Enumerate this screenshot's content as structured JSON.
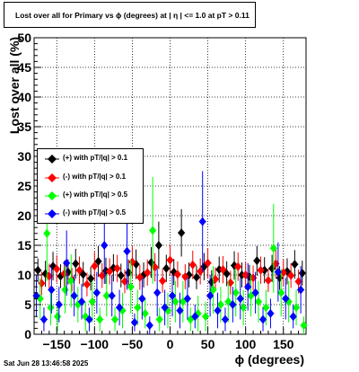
{
  "title": "Lost over all for Primary vs ϕ (degrees) at |  η  | <= 1.0 at pT > 0.11",
  "timestamp": "Sat Jun 28 13:46:58 2025",
  "chart_data": {
    "type": "scatter",
    "xlabel": "ϕ (degrees)",
    "ylabel": "Lost over all (%)",
    "xlim": [
      -180,
      180
    ],
    "ylim": [
      0,
      50
    ],
    "x_ticks": [
      "−150",
      "−100",
      "−50",
      "0",
      "50",
      "100",
      "150"
    ],
    "x_tick_values": [
      -150,
      -100,
      -50,
      0,
      50,
      100,
      150
    ],
    "y_ticks": [
      "0",
      "5",
      "10",
      "15",
      "20",
      "25",
      "30",
      "35",
      "40",
      "45",
      "50"
    ],
    "y_tick_values": [
      0,
      5,
      10,
      15,
      20,
      25,
      30,
      35,
      40,
      45,
      50
    ],
    "grid": true,
    "legend_position": "middle-left",
    "series": [
      {
        "name": "(+) with pT/|q| > 0.1",
        "color": "#000000",
        "x": [
          -175,
          -165,
          -155,
          -145,
          -135,
          -125,
          -115,
          -105,
          -95,
          -85,
          -75,
          -65,
          -55,
          -45,
          -35,
          -25,
          -15,
          -5,
          5,
          15,
          25,
          35,
          45,
          55,
          65,
          75,
          85,
          95,
          105,
          115,
          125,
          135,
          145,
          155,
          165,
          175
        ],
        "y": [
          10.8,
          10.2,
          11.5,
          9.8,
          10.5,
          11.9,
          10.1,
          9.4,
          12.3,
          10.7,
          11.2,
          9.9,
          10.4,
          11.8,
          10.0,
          12.1,
          15.0,
          11.1,
          10.5,
          17.1,
          10.0,
          9.6,
          11.4,
          8.8,
          10.9,
          10.2,
          11.6,
          10.0,
          9.7,
          12.4,
          10.8,
          11.1,
          9.5,
          10.6,
          11.8,
          10.3
        ],
        "err": [
          2.0,
          2.2,
          2.4,
          2.0,
          2.1,
          2.5,
          2.1,
          2.0,
          2.6,
          2.2,
          2.3,
          2.0,
          2.2,
          2.5,
          2.1,
          2.6,
          4.0,
          2.3,
          2.2,
          4.0,
          2.1,
          2.0,
          2.3,
          2.0,
          2.2,
          2.1,
          2.4,
          2.1,
          2.0,
          2.5,
          2.2,
          2.3,
          2.0,
          2.2,
          2.4,
          2.1
        ]
      },
      {
        "name": "(-) with pT/|q| > 0.1",
        "color": "#ff0000",
        "x": [
          -170,
          -160,
          -150,
          -140,
          -130,
          -120,
          -110,
          -100,
          -90,
          -80,
          -70,
          -60,
          -50,
          -40,
          -30,
          -20,
          -10,
          0,
          10,
          20,
          30,
          40,
          50,
          60,
          70,
          80,
          90,
          100,
          110,
          120,
          130,
          140,
          150,
          160,
          170
        ],
        "y": [
          8.6,
          9.8,
          11.0,
          10.2,
          9.2,
          10.8,
          8.4,
          11.5,
          9.9,
          10.6,
          11.1,
          8.9,
          12.2,
          9.6,
          10.4,
          11.3,
          9.0,
          12.5,
          10.1,
          9.7,
          11.7,
          10.6,
          12.0,
          9.3,
          10.9,
          8.7,
          11.4,
          10.0,
          9.5,
          10.8,
          9.1,
          11.9,
          10.4,
          9.9,
          8.9
        ],
        "err": [
          2.0,
          2.1,
          2.3,
          2.2,
          2.0,
          2.3,
          2.0,
          2.4,
          2.1,
          2.2,
          2.3,
          2.0,
          2.6,
          2.1,
          2.2,
          2.4,
          2.0,
          2.6,
          2.2,
          2.1,
          2.4,
          2.2,
          2.5,
          2.0,
          2.3,
          2.0,
          2.4,
          2.2,
          2.1,
          2.3,
          2.0,
          2.5,
          2.2,
          2.1,
          2.0
        ]
      },
      {
        "name": "(+) with pT/|q| > 0.5",
        "color": "#00ff00",
        "x": [
          -172,
          -163,
          -158,
          -149,
          -139,
          -131,
          -122,
          -112,
          -103,
          -93,
          -84,
          -73,
          -63,
          -52,
          -43,
          -33,
          -23,
          -14,
          -3,
          7,
          17,
          27,
          37,
          47,
          57,
          67,
          77,
          87,
          97,
          107,
          117,
          127,
          137,
          147,
          157,
          167,
          177
        ],
        "y": [
          6.0,
          17.0,
          4.5,
          3.0,
          7.5,
          9.0,
          5.0,
          3.0,
          5.5,
          2.5,
          6.5,
          2.5,
          4.0,
          8.0,
          4.5,
          3.5,
          17.5,
          2.5,
          4.0,
          5.5,
          5.5,
          2.5,
          3.5,
          3.0,
          7.5,
          5.0,
          5.5,
          7.0,
          4.5,
          6.5,
          5.5,
          4.5,
          14.5,
          7.0,
          5.5,
          4.5,
          1.5
        ],
        "err": [
          3.5,
          8.0,
          3.0,
          2.5,
          4.0,
          4.5,
          3.0,
          2.5,
          3.5,
          2.0,
          3.5,
          2.0,
          3.0,
          4.5,
          3.0,
          2.5,
          9.0,
          2.0,
          3.0,
          3.5,
          3.5,
          2.0,
          3.0,
          2.5,
          4.0,
          3.0,
          3.5,
          4.0,
          3.0,
          3.5,
          3.5,
          3.0,
          7.5,
          4.0,
          3.5,
          3.0,
          1.5
        ]
      },
      {
        "name": "(-) with pT/|q| > 0.5",
        "color": "#0000ff",
        "x": [
          -177,
          -167,
          -157,
          -147,
          -137,
          -127,
          -117,
          -107,
          -97,
          -87,
          -77,
          -67,
          -57,
          -47,
          -37,
          -27,
          -17,
          -7,
          3,
          13,
          23,
          33,
          43,
          53,
          63,
          73,
          83,
          93,
          103,
          113,
          123,
          133,
          143,
          153,
          163,
          173
        ],
        "y": [
          6.5,
          2.5,
          7.5,
          5.0,
          12.0,
          6.5,
          5.5,
          2.5,
          7.0,
          15.0,
          6.5,
          4.5,
          14.0,
          2.0,
          6.0,
          1.5,
          7.0,
          4.5,
          6.5,
          4.0,
          6.0,
          3.0,
          19.0,
          6.5,
          4.0,
          2.5,
          5.0,
          6.0,
          8.0,
          7.0,
          2.5,
          3.5,
          10.5,
          6.0,
          3.0,
          7.5
        ],
        "err": [
          3.5,
          2.0,
          4.0,
          3.0,
          5.5,
          3.5,
          3.0,
          2.0,
          3.5,
          6.5,
          3.5,
          3.0,
          6.5,
          1.5,
          3.5,
          1.5,
          4.0,
          3.0,
          3.5,
          3.0,
          3.5,
          2.0,
          8.5,
          3.5,
          3.0,
          2.0,
          3.0,
          3.5,
          4.0,
          3.5,
          2.0,
          2.5,
          5.0,
          3.5,
          2.0,
          4.0
        ]
      }
    ]
  }
}
